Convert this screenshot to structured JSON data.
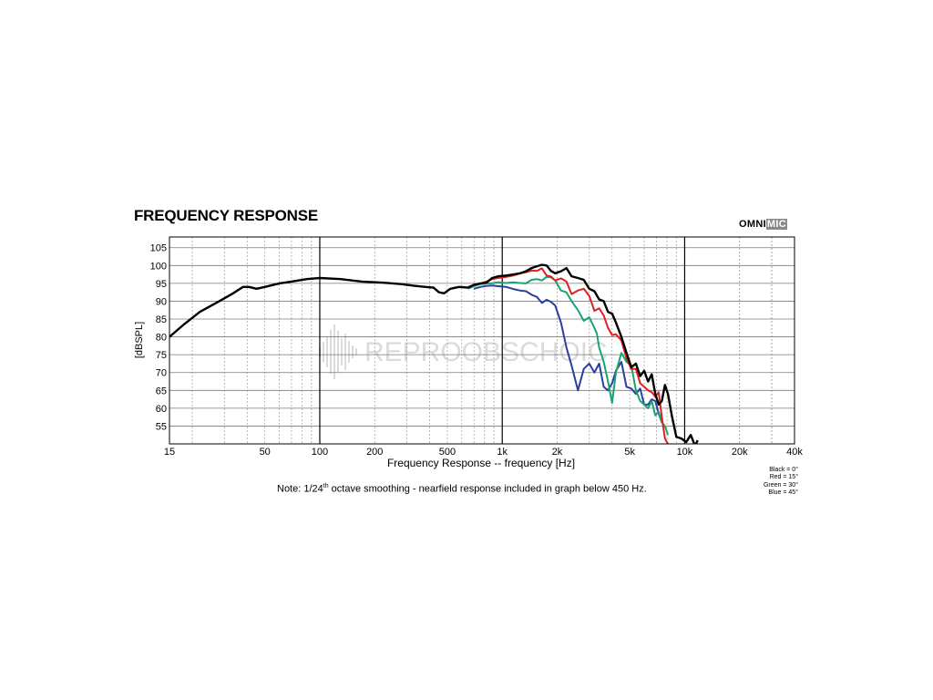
{
  "header": {
    "title": "FREQUENCY RESPONSE",
    "brand_part1": "OMNI",
    "brand_part2": "MIC"
  },
  "watermark": "REPROOBSCHOIC",
  "note": {
    "prefix": "Note: 1/24",
    "superscript": "th",
    "suffix": " octave smoothing - nearfield response included in graph below 450 Hz."
  },
  "legend": [
    "Black = 0°",
    "Red = 15°",
    "Green = 30°",
    "Blue = 45°"
  ],
  "chart_data": {
    "type": "line",
    "title": "FREQUENCY RESPONSE",
    "xlabel": "Frequency Response -- frequency [Hz]",
    "ylabel": "[dBSPL]",
    "x_scale": "log",
    "xlim": [
      15,
      40000
    ],
    "ylim": [
      50,
      108
    ],
    "grid": true,
    "x_ticks": [
      {
        "value": 15,
        "label": "15"
      },
      {
        "value": 50,
        "label": "50"
      },
      {
        "value": 100,
        "label": "100"
      },
      {
        "value": 200,
        "label": "200"
      },
      {
        "value": 500,
        "label": "500"
      },
      {
        "value": 1000,
        "label": "1k"
      },
      {
        "value": 2000,
        "label": "2k"
      },
      {
        "value": 5000,
        "label": "5k"
      },
      {
        "value": 10000,
        "label": "10k"
      },
      {
        "value": 20000,
        "label": "20k"
      },
      {
        "value": 40000,
        "label": "40k"
      }
    ],
    "y_ticks": [
      55,
      60,
      65,
      70,
      75,
      80,
      85,
      90,
      95,
      100,
      105
    ],
    "series": [
      {
        "name": "Black = 0°",
        "color": "#000000",
        "x": [
          15,
          18,
          22,
          27,
          33,
          38,
          41,
          45,
          50,
          60,
          70,
          85,
          100,
          130,
          170,
          220,
          280,
          330,
          380,
          420,
          450,
          480,
          520,
          580,
          650,
          700,
          760,
          820,
          880,
          950,
          1050,
          1150,
          1250,
          1350,
          1450,
          1550,
          1650,
          1750,
          1850,
          1950,
          2100,
          2250,
          2400,
          2600,
          2800,
          3000,
          3200,
          3400,
          3600,
          3800,
          4000,
          4200,
          4500,
          4800,
          5100,
          5400,
          5700,
          6000,
          6300,
          6600,
          6900,
          7200,
          7500,
          7800,
          8100,
          8500,
          9000,
          9600,
          10200,
          10800,
          11400,
          11800
        ],
        "y": [
          80,
          83.5,
          87,
          89.5,
          92,
          94,
          94,
          93.5,
          94,
          95,
          95.5,
          96.2,
          96.5,
          96.2,
          95.5,
          95.2,
          94.8,
          94.3,
          94,
          93.8,
          92.5,
          92.2,
          93.5,
          94,
          93.8,
          94.6,
          95,
          95.2,
          96.5,
          97,
          97.2,
          97.5,
          97.8,
          98.4,
          99.3,
          99.8,
          100.2,
          100,
          98.5,
          97.8,
          98.4,
          99.3,
          97,
          96.5,
          96,
          93.5,
          92.8,
          90.5,
          90,
          87,
          86.5,
          84,
          80,
          75.5,
          71.5,
          72.5,
          69,
          70.5,
          67.5,
          69.5,
          64,
          61,
          62,
          66.5,
          64,
          58,
          52,
          51.5,
          50.5,
          52.5,
          49.5,
          51
        ]
      },
      {
        "name": "Red = 15°",
        "color": "#e02020",
        "x": [
          650,
          700,
          760,
          820,
          880,
          950,
          1050,
          1150,
          1250,
          1350,
          1450,
          1550,
          1650,
          1750,
          1850,
          1950,
          2100,
          2250,
          2400,
          2600,
          2800,
          3000,
          3200,
          3400,
          3600,
          3800,
          4000,
          4200,
          4500,
          4800,
          5100,
          5400,
          5700,
          6000,
          6300,
          6600,
          6900,
          7200,
          7500,
          7800,
          8100
        ],
        "y": [
          94,
          94.5,
          95,
          95.5,
          96.2,
          96.5,
          96.8,
          97.2,
          97.8,
          98.1,
          98.6,
          98.5,
          99.2,
          97.2,
          96.9,
          95.8,
          96.4,
          95.5,
          92,
          93,
          93.5,
          91.5,
          87.3,
          88,
          86,
          82.5,
          80.5,
          80.7,
          79,
          74,
          71,
          71,
          67,
          66,
          65,
          64.5,
          63.2,
          64.5,
          57.5,
          51.5,
          50
        ]
      },
      {
        "name": "Green = 30°",
        "color": "#1aa374",
        "x": [
          650,
          700,
          760,
          820,
          880,
          950,
          1050,
          1150,
          1250,
          1350,
          1450,
          1550,
          1650,
          1750,
          1850,
          1950,
          2100,
          2250,
          2400,
          2600,
          2800,
          3000,
          3200,
          3300,
          3400,
          3600,
          3800,
          4000,
          4200,
          4500,
          4800,
          5100,
          5400,
          5700,
          6000,
          6300,
          6600,
          6900,
          7200,
          7500,
          7800,
          8100
        ],
        "y": [
          93.5,
          94.2,
          94.8,
          95,
          95,
          95.3,
          95.1,
          95.3,
          95.1,
          95,
          96,
          96.2,
          95.8,
          96.8,
          96.7,
          95.8,
          93,
          92.5,
          90,
          87.5,
          84.5,
          85.5,
          82.5,
          81,
          77,
          73,
          67.5,
          61.5,
          70,
          75.5,
          73,
          72,
          65,
          62,
          61,
          60,
          62,
          58,
          59,
          56,
          55,
          52.5
        ]
      },
      {
        "name": "Blue = 45°",
        "color": "#2a3f9e",
        "x": [
          700,
          760,
          820,
          880,
          950,
          1050,
          1150,
          1250,
          1350,
          1450,
          1550,
          1650,
          1750,
          1850,
          1950,
          2100,
          2250,
          2400,
          2600,
          2800,
          3000,
          3200,
          3400,
          3600,
          3800,
          4000,
          4200,
          4500,
          4800,
          5100,
          5400,
          5700,
          6000,
          6300,
          6600,
          6900,
          7200,
          7500
        ],
        "y": [
          93.5,
          94,
          94.3,
          94.4,
          94.2,
          94,
          93.4,
          93,
          92.8,
          91.8,
          91.2,
          89.5,
          90.4,
          89.8,
          88.8,
          84,
          77,
          72,
          65,
          71,
          72.5,
          70,
          72.5,
          66,
          65,
          67,
          70.5,
          73,
          66,
          65.5,
          64,
          65.5,
          61,
          61,
          62.5,
          62,
          58.5,
          56
        ]
      }
    ]
  }
}
